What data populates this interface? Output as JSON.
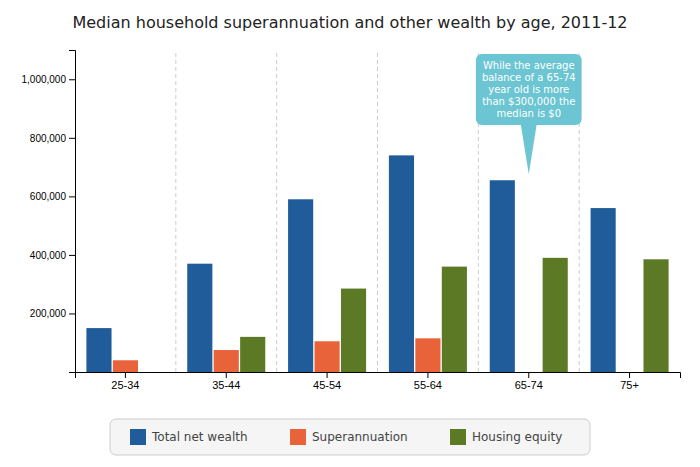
{
  "chart_data": {
    "type": "bar",
    "title": "Median household superannuation and other wealth by age, 2011-12",
    "categories": [
      "25-34",
      "35-44",
      "45-54",
      "55-64",
      "65-74",
      "75+"
    ],
    "series": [
      {
        "name": "Total net wealth",
        "color": "#1f5c99",
        "values": [
          150000,
          370000,
          590000,
          740000,
          655000,
          560000
        ]
      },
      {
        "name": "Superannuation",
        "color": "#e8623a",
        "values": [
          40000,
          75000,
          105000,
          115000,
          0,
          0
        ]
      },
      {
        "name": "Housing equity",
        "color": "#5c7a26",
        "values": [
          0,
          120000,
          285000,
          360000,
          390000,
          385000
        ]
      }
    ],
    "ylim": [
      0,
      1100000
    ],
    "yticks": [
      {
        "value": 200000,
        "label": "200,000"
      },
      {
        "value": 400000,
        "label": "400,000"
      },
      {
        "value": 600000,
        "label": "600,000"
      },
      {
        "value": 800000,
        "label": "800,000"
      },
      {
        "value": 1000000,
        "label": "1,000,000"
      }
    ],
    "annotations": [
      {
        "text": "While the average\nbalance of a 65-74\nyear old is more\nthan $300,000 the\nmedian is $0",
        "x": "65-74"
      }
    ],
    "grid": false,
    "legend": "bottom"
  }
}
